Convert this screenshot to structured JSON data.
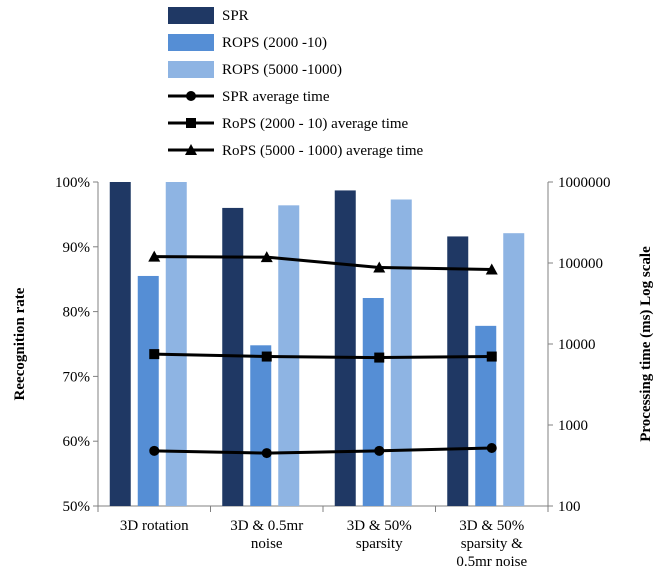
{
  "chart_data": {
    "type": "bar",
    "categories": [
      [
        "3D rotation"
      ],
      [
        "3D & 0.5mr",
        "noise"
      ],
      [
        "3D & 50%",
        "sparsity"
      ],
      [
        "3D & 50%",
        "sparsity &",
        "0.5mr noise"
      ]
    ],
    "series": [
      {
        "name": "SPR",
        "kind": "bar",
        "axis": "left",
        "color": "#1f3864",
        "values": [
          100.0,
          96.0,
          98.7,
          91.6
        ]
      },
      {
        "name": "ROPS (2000 -10)",
        "kind": "bar",
        "axis": "left",
        "color": "#558ed5",
        "values": [
          85.5,
          74.8,
          82.1,
          77.8
        ]
      },
      {
        "name": "ROPS (5000 -1000)",
        "kind": "bar",
        "axis": "left",
        "color": "#8eb4e3",
        "values": [
          100.0,
          96.4,
          97.3,
          92.1
        ]
      },
      {
        "name": "SPR average time",
        "kind": "line",
        "axis": "right",
        "marker": "circle",
        "values": [
          480,
          450,
          480,
          520
        ]
      },
      {
        "name": "RoPS (2000 - 10) average time",
        "kind": "line",
        "axis": "right",
        "marker": "square",
        "values": [
          7500,
          7000,
          6800,
          7000
        ]
      },
      {
        "name": "RoPS (5000 - 1000) average time",
        "kind": "line",
        "axis": "right",
        "marker": "triangle",
        "values": [
          120000,
          118000,
          88000,
          83000
        ]
      }
    ],
    "ylabel": "Reecognition  rate",
    "y2label": "Processing time (ms) Log  scale",
    "ylim": [
      50,
      100
    ],
    "y2lim": [
      100,
      1000000
    ],
    "y2scale": "log",
    "yticks": [
      "50%",
      "60%",
      "70%",
      "80%",
      "90%",
      "100%"
    ],
    "y2ticks": [
      "100",
      "1000",
      "10000",
      "100000",
      "1000000"
    ],
    "legend_position": "top",
    "grid": false
  }
}
